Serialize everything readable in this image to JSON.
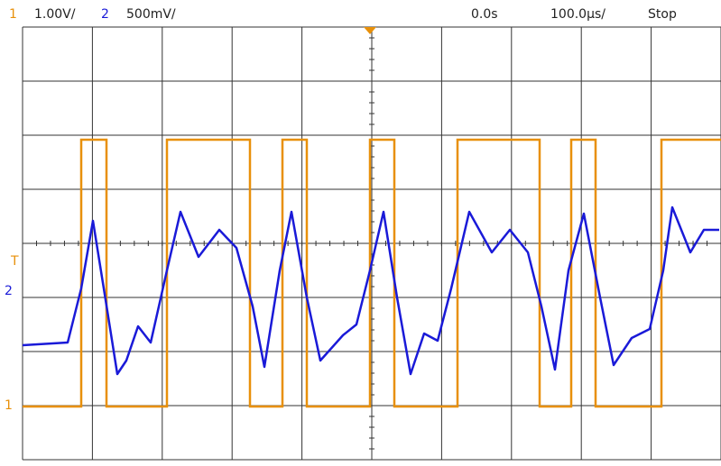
{
  "header": {
    "ch1": {
      "label": "1",
      "scale": "1.00V/"
    },
    "ch2": {
      "label": "2",
      "scale": "500mV/"
    },
    "time_offset": "0.0s",
    "time_scale": "100.0µs/",
    "status": "Stop"
  },
  "markers": {
    "trigger": "T",
    "ch2": "2",
    "ch1": "1"
  }
}
